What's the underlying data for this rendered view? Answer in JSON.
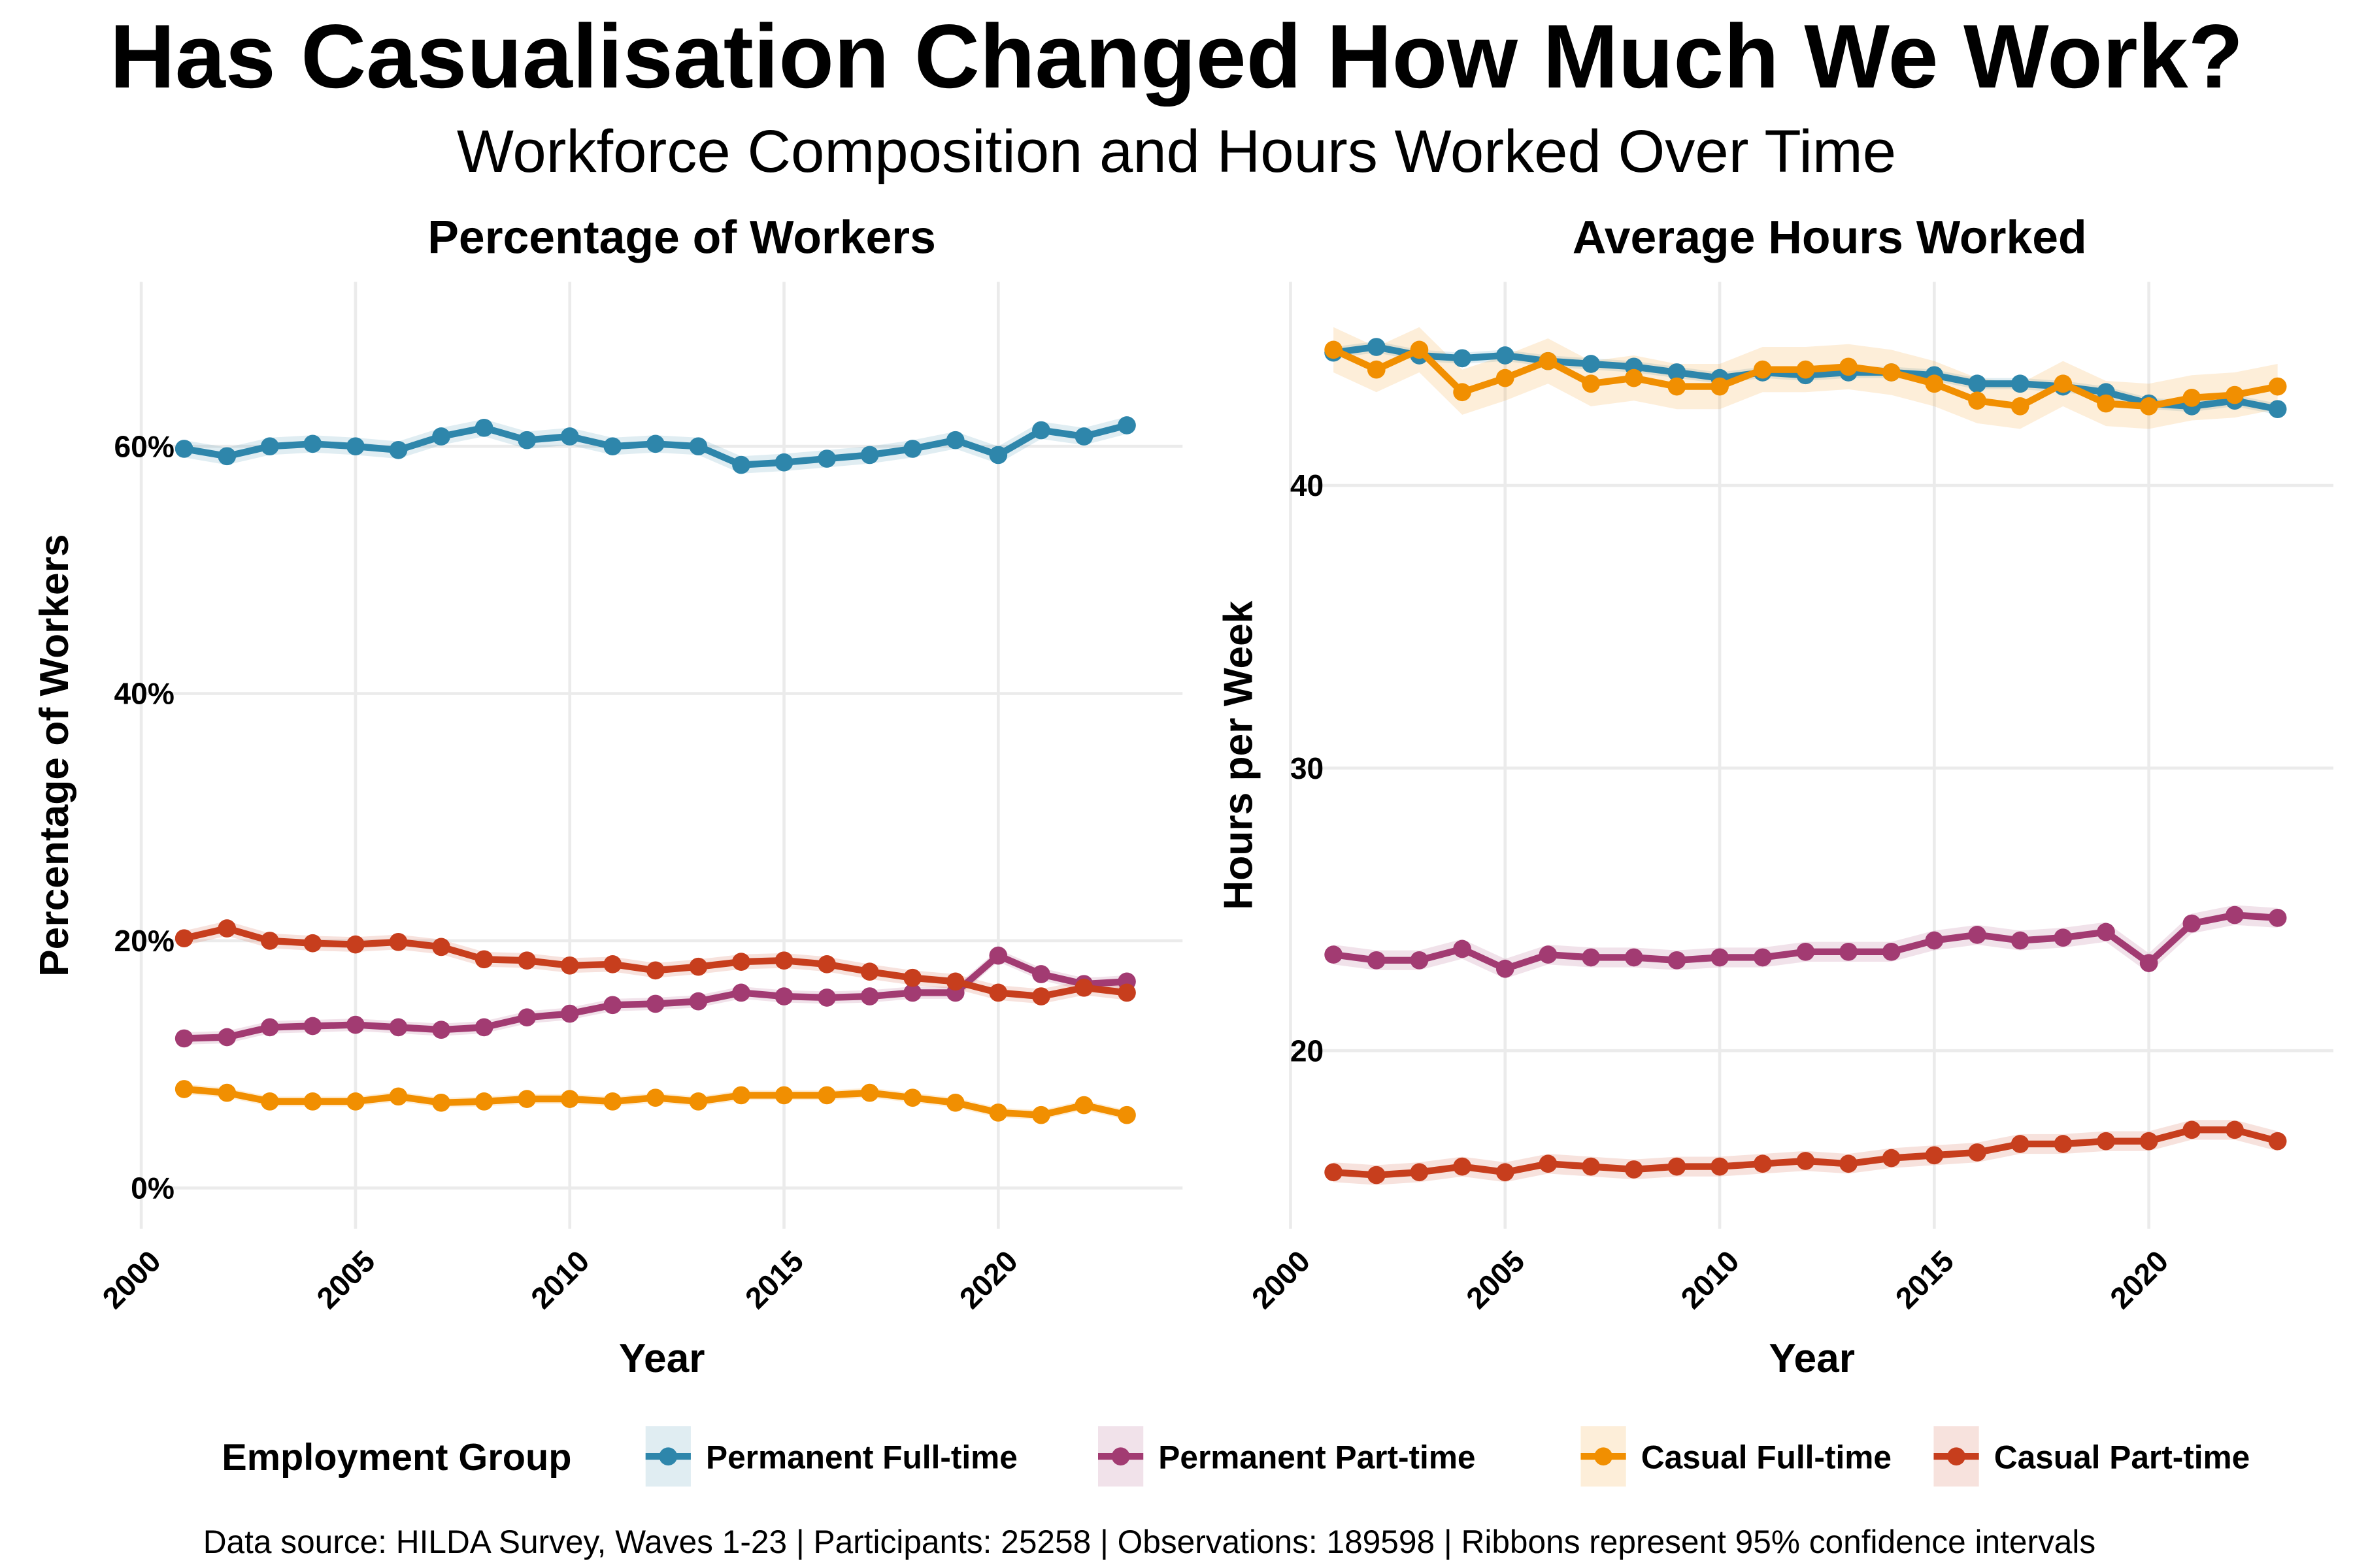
{
  "title": "Has Casualisation Changed How Much We Work?",
  "subtitle": "Workforce Composition and Hours Worked Over Time",
  "legend": {
    "title": "Employment Group"
  },
  "caption": "Data source: HILDA Survey, Waves 1-23 | Participants: 25258 | Observations: 189598 | Ribbons represent 95% confidence intervals",
  "colors": {
    "Permanent Full-time": "#2E86AB",
    "Permanent Part-time": "#A23B72",
    "Casual Full-time": "#F18F01",
    "Casual Part-time": "#C73E1D"
  },
  "chart_data": [
    {
      "type": "line",
      "title": "Percentage of Workers",
      "xlabel": "Year",
      "ylabel": "Percentage of Workers",
      "xlim": [
        2000,
        2024.3
      ],
      "ylim": [
        -3.3,
        73.3
      ],
      "xticks": [
        2000,
        2005,
        2010,
        2015,
        2020
      ],
      "yticks": [
        0,
        20,
        40,
        60
      ],
      "ytick_labels": [
        "0%",
        "20%",
        "40%",
        "60%"
      ],
      "grid": true,
      "legend_position": "bottom",
      "x": [
        2001,
        2002,
        2003,
        2004,
        2005,
        2006,
        2007,
        2008,
        2009,
        2010,
        2011,
        2012,
        2013,
        2014,
        2015,
        2016,
        2017,
        2018,
        2019,
        2020,
        2021,
        2022,
        2023
      ],
      "series": [
        {
          "name": "Permanent Full-time",
          "ci_halfwidth": 0.7,
          "values": [
            59.8,
            59.2,
            60.0,
            60.2,
            60.0,
            59.7,
            60.8,
            61.5,
            60.5,
            60.8,
            60.0,
            60.2,
            60.0,
            58.5,
            58.7,
            59.0,
            59.3,
            59.8,
            60.5,
            59.3,
            61.3,
            60.8,
            61.7
          ]
        },
        {
          "name": "Permanent Part-time",
          "ci_halfwidth": 0.5,
          "values": [
            12.1,
            12.2,
            13.0,
            13.1,
            13.2,
            13.0,
            12.8,
            13.0,
            13.8,
            14.1,
            14.8,
            14.9,
            15.1,
            15.8,
            15.5,
            15.4,
            15.5,
            15.8,
            15.8,
            18.8,
            17.3,
            16.5,
            16.7
          ]
        },
        {
          "name": "Casual Full-time",
          "ci_halfwidth": 0.4,
          "values": [
            8.0,
            7.7,
            7.0,
            7.0,
            7.0,
            7.4,
            6.9,
            7.0,
            7.2,
            7.2,
            7.0,
            7.3,
            7.0,
            7.5,
            7.5,
            7.5,
            7.7,
            7.3,
            6.9,
            6.1,
            5.9,
            6.7,
            5.9
          ]
        },
        {
          "name": "Casual Part-time",
          "ci_halfwidth": 0.6,
          "values": [
            20.2,
            21.0,
            20.0,
            19.8,
            19.7,
            19.9,
            19.5,
            18.5,
            18.4,
            18.0,
            18.1,
            17.6,
            17.9,
            18.3,
            18.4,
            18.1,
            17.5,
            17.0,
            16.7,
            15.8,
            15.5,
            16.2,
            15.8
          ]
        }
      ]
    },
    {
      "type": "line",
      "title": "Average Hours Worked",
      "xlabel": "Year",
      "ylabel": "Hours per Week",
      "xlim": [
        2000,
        2024.3
      ],
      "ylim": [
        13.7,
        47.2
      ],
      "xticks": [
        2000,
        2005,
        2010,
        2015,
        2020
      ],
      "yticks": [
        20,
        30,
        40
      ],
      "ytick_labels": [
        "20",
        "30",
        "40"
      ],
      "grid": true,
      "legend_position": "bottom",
      "x": [
        2001,
        2002,
        2003,
        2004,
        2005,
        2006,
        2007,
        2008,
        2009,
        2010,
        2011,
        2012,
        2013,
        2014,
        2015,
        2016,
        2017,
        2018,
        2019,
        2020,
        2021,
        2022,
        2023
      ],
      "series": [
        {
          "name": "Permanent Full-time",
          "ci_halfwidth": 0.2,
          "values": [
            44.7,
            44.9,
            44.6,
            44.5,
            44.6,
            44.4,
            44.3,
            44.2,
            44.0,
            43.8,
            44.0,
            43.9,
            44.0,
            44.0,
            43.9,
            43.6,
            43.6,
            43.5,
            43.3,
            42.9,
            42.8,
            43.0,
            42.7
          ]
        },
        {
          "name": "Permanent Part-time",
          "ci_halfwidth": 0.35,
          "values": [
            23.4,
            23.2,
            23.2,
            23.6,
            22.9,
            23.4,
            23.3,
            23.3,
            23.2,
            23.3,
            23.3,
            23.5,
            23.5,
            23.5,
            23.9,
            24.1,
            23.9,
            24.0,
            24.2,
            23.1,
            24.5,
            24.8,
            24.7
          ]
        },
        {
          "name": "Casual Full-time",
          "ci_halfwidth": 0.8,
          "values": [
            44.8,
            44.1,
            44.8,
            43.3,
            43.8,
            44.4,
            43.6,
            43.8,
            43.5,
            43.5,
            44.1,
            44.1,
            44.2,
            44.0,
            43.6,
            43.0,
            42.8,
            43.6,
            42.9,
            42.8,
            43.1,
            43.2,
            43.5
          ]
        },
        {
          "name": "Casual Part-time",
          "ci_halfwidth": 0.35,
          "values": [
            15.7,
            15.6,
            15.7,
            15.9,
            15.7,
            16.0,
            15.9,
            15.8,
            15.9,
            15.9,
            16.0,
            16.1,
            16.0,
            16.2,
            16.3,
            16.4,
            16.7,
            16.7,
            16.8,
            16.8,
            17.2,
            17.2,
            16.8
          ]
        }
      ]
    }
  ]
}
